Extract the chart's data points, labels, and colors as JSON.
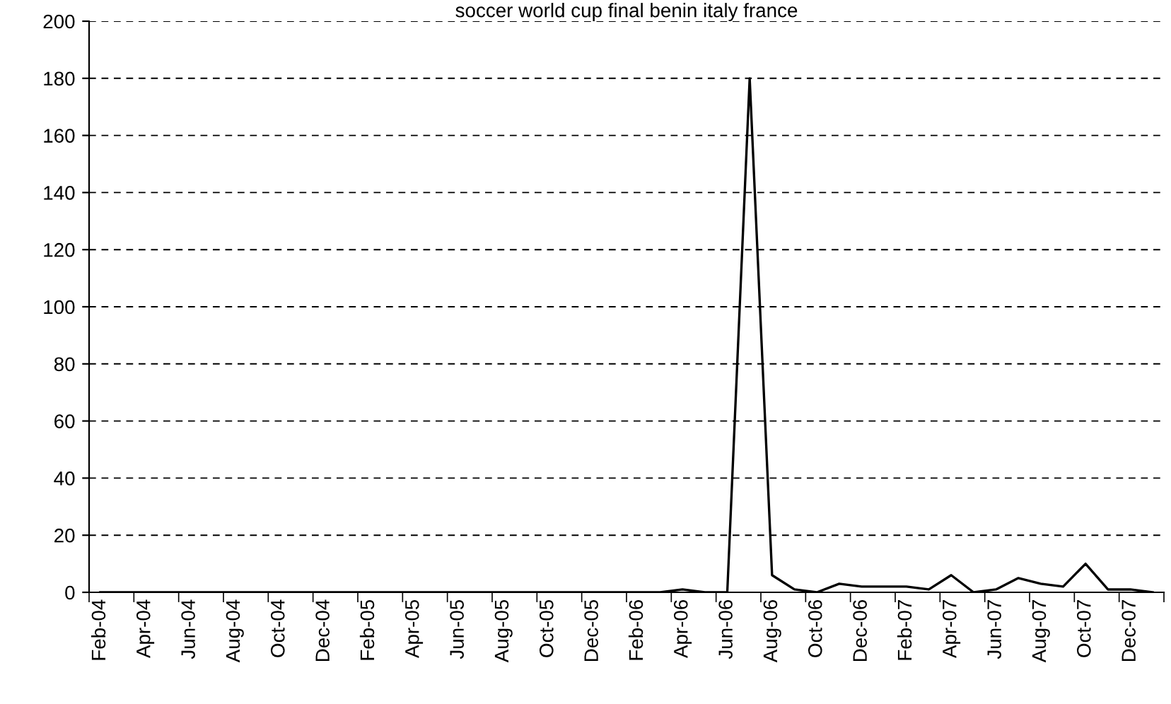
{
  "chart_data": {
    "type": "line",
    "title": "soccer world cup final benin italy france",
    "categories": [
      "Feb-04",
      null,
      "Apr-04",
      null,
      "Jun-04",
      null,
      "Aug-04",
      null,
      "Oct-04",
      null,
      "Dec-04",
      null,
      "Feb-05",
      null,
      "Apr-05",
      null,
      "Jun-05",
      null,
      "Aug-05",
      null,
      "Oct-05",
      null,
      "Dec-05",
      null,
      "Feb-06",
      null,
      "Apr-06",
      null,
      "Jun-06",
      null,
      "Aug-06",
      null,
      "Oct-06",
      null,
      "Dec-06",
      null,
      "Feb-07",
      null,
      "Apr-07",
      null,
      "Jun-07",
      null,
      "Aug-07",
      null,
      "Oct-07",
      null,
      "Dec-07",
      null
    ],
    "series": [
      {
        "color": "#000000",
        "values": [
          0,
          0,
          0,
          0,
          0,
          0,
          0,
          0,
          0,
          0,
          0,
          0,
          0,
          0,
          0,
          0,
          0,
          0,
          0,
          0,
          0,
          0,
          0,
          0,
          0,
          0,
          1,
          0,
          0,
          180,
          6,
          1,
          0,
          3,
          2,
          2,
          2,
          1,
          6,
          0,
          1,
          5,
          3,
          2,
          10,
          1,
          1,
          0
        ]
      }
    ],
    "ylim": [
      0,
      200
    ],
    "yticks": [
      0,
      20,
      40,
      60,
      80,
      100,
      120,
      140,
      160,
      180,
      200
    ],
    "grid": "y",
    "legend": false,
    "marker": "none",
    "line_style": "solid"
  }
}
